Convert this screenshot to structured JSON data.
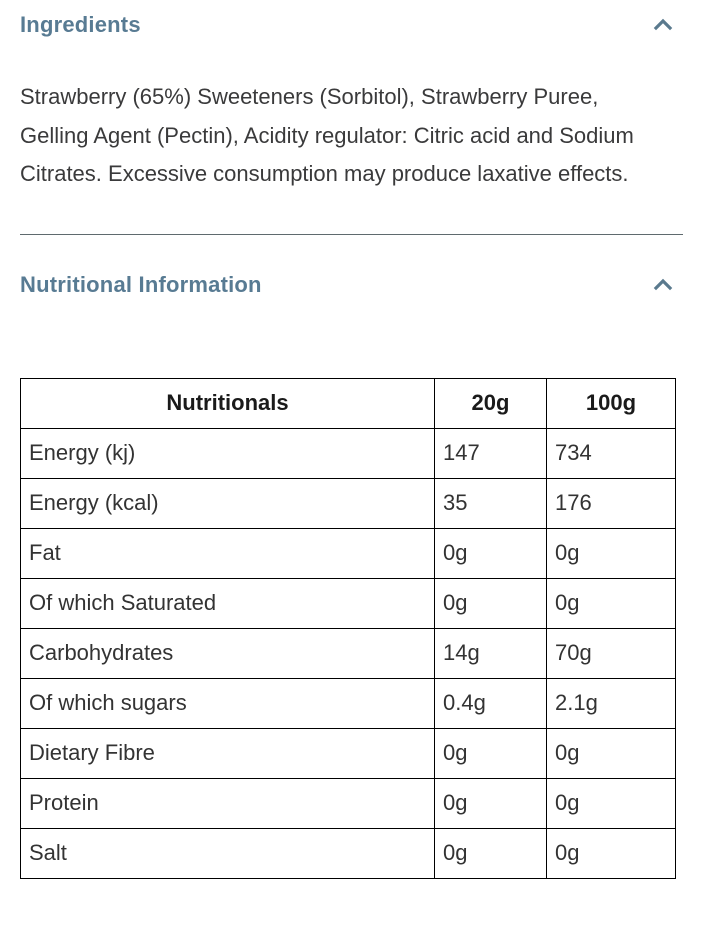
{
  "colors": {
    "heading": "#587b93",
    "chevron": "#5a7a8e",
    "body_text": "#3a3a3b",
    "table_border": "#000000",
    "divider": "#5f6a6e",
    "background": "#ffffff"
  },
  "ingredients_section": {
    "title": "Ingredients",
    "chevron_icon": "chevron-up",
    "expanded": true,
    "text": "Strawberry (65%) Sweeteners (Sorbitol), Strawberry Puree, Gelling Agent (Pectin), Acidity regulator: Citric acid and Sodium Citrates. Excessive consumption may produce laxative effects."
  },
  "nutrition_section": {
    "title": "Nutritional Information",
    "chevron_icon": "chevron-up",
    "expanded": true,
    "table": {
      "headers": [
        "Nutritionals",
        "20g",
        "100g"
      ],
      "rows": [
        {
          "label": "Energy (kj)",
          "per20g": "147",
          "per100g": "734"
        },
        {
          "label": "Energy (kcal)",
          "per20g": "35",
          "per100g": "176"
        },
        {
          "label": "Fat",
          "per20g": "0g",
          "per100g": "0g"
        },
        {
          "label": "Of which Saturated",
          "per20g": "0g",
          "per100g": "0g"
        },
        {
          "label": "Carbohydrates",
          "per20g": "14g",
          "per100g": "70g"
        },
        {
          "label": "Of which sugars",
          "per20g": "0.4g",
          "per100g": "2.1g"
        },
        {
          "label": "Dietary Fibre",
          "per20g": "0g",
          "per100g": "0g"
        },
        {
          "label": "Protein",
          "per20g": "0g",
          "per100g": "0g"
        },
        {
          "label": "Salt",
          "per20g": "0g",
          "per100g": "0g"
        }
      ]
    }
  }
}
